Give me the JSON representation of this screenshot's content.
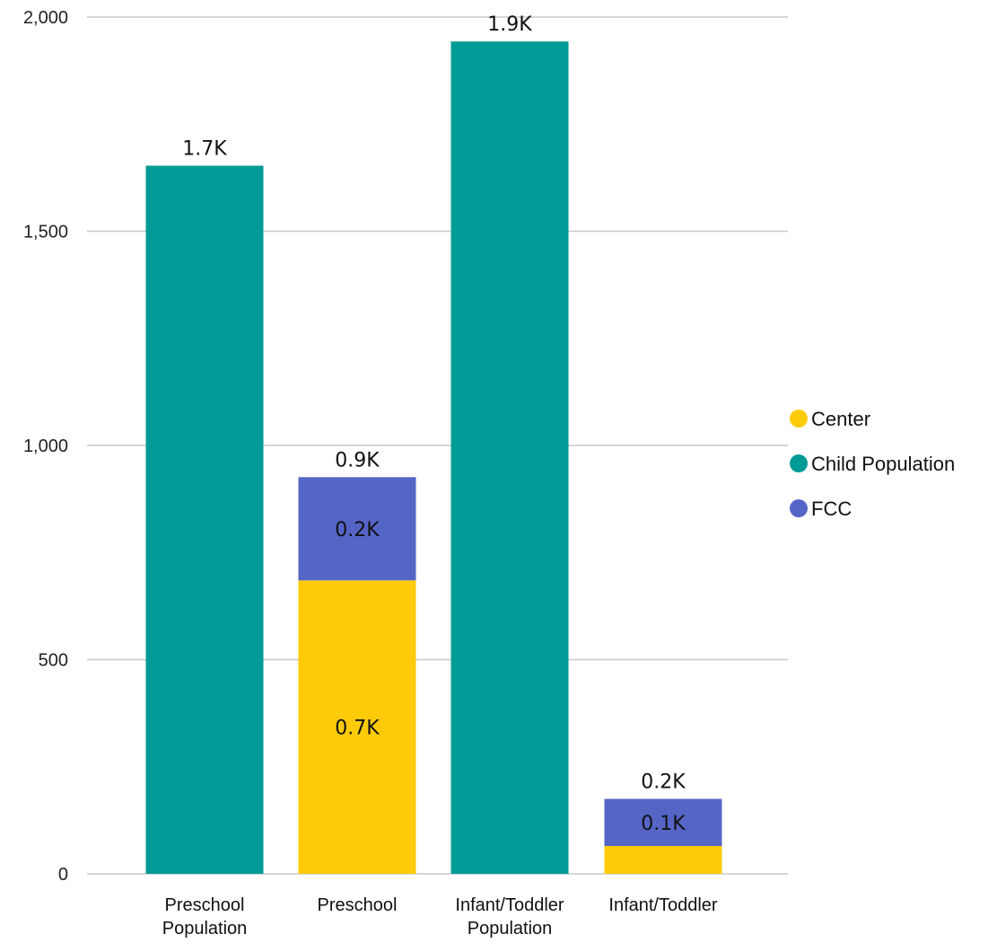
{
  "chart_data": {
    "type": "bar",
    "stacked": true,
    "categories": [
      [
        "Preschool",
        "Population"
      ],
      [
        "Preschool"
      ],
      [
        "Infant/Toddler",
        "Population"
      ],
      [
        "Infant/Toddler"
      ]
    ],
    "series": [
      {
        "name": "Center",
        "color": "#FDCB0A",
        "values": [
          null,
          685,
          null,
          65
        ]
      },
      {
        "name": "Child Population",
        "color": "#009B96",
        "values": [
          1653,
          null,
          1943,
          null
        ]
      },
      {
        "name": "FCC",
        "color": "#5565C6",
        "values": [
          null,
          241,
          null,
          110
        ]
      }
    ],
    "segment_labels": [
      {
        "category": 1,
        "series": "Center",
        "text": "0.7K"
      },
      {
        "category": 1,
        "series": "FCC",
        "text": "0.2K"
      },
      {
        "category": 3,
        "series": "FCC",
        "text": "0.1K"
      }
    ],
    "total_labels": [
      "1.7K",
      "0.9K",
      "1.9K",
      "0.2K"
    ],
    "ylim": [
      0,
      2000
    ],
    "yticks": [
      0,
      500,
      1000,
      1500,
      2000
    ],
    "ytick_labels": [
      "0",
      "500",
      "1,000",
      "1,500",
      "2,000"
    ],
    "grid": true,
    "legend_position": "right",
    "title": "",
    "xlabel": "",
    "ylabel": ""
  }
}
